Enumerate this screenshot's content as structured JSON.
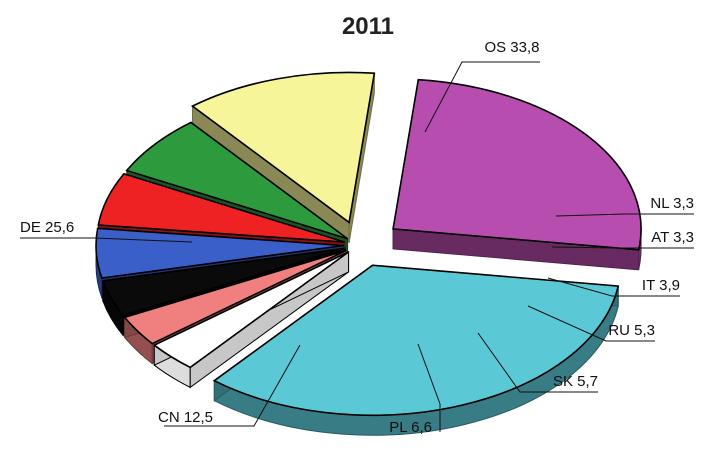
{
  "chart_data": {
    "type": "pie",
    "title": "2011",
    "slices": [
      {
        "code": "OS",
        "value": 33.8,
        "label": "OS 33,8",
        "color": "#5bc8d6"
      },
      {
        "code": "NL",
        "value": 3.3,
        "label": "NL 3,3",
        "color": "#ffffff"
      },
      {
        "code": "AT",
        "value": 3.3,
        "label": "AT 3,3",
        "color": "#f08080"
      },
      {
        "code": "IT",
        "value": 3.9,
        "label": "IT 3,9",
        "color": "#0a0a0a"
      },
      {
        "code": "RU",
        "value": 5.3,
        "label": "RU 5,3",
        "color": "#3a5fc8"
      },
      {
        "code": "SK",
        "value": 5.7,
        "label": "SK 5,7",
        "color": "#ee2222"
      },
      {
        "code": "PL",
        "value": 6.6,
        "label": "PL 6,6",
        "color": "#2e9a3e"
      },
      {
        "code": "CN",
        "value": 12.5,
        "label": "CN 12,5",
        "color": "#f7f59a"
      },
      {
        "code": "DE",
        "value": 25.6,
        "label": "DE 25,6",
        "color": "#b84db0"
      }
    ]
  }
}
